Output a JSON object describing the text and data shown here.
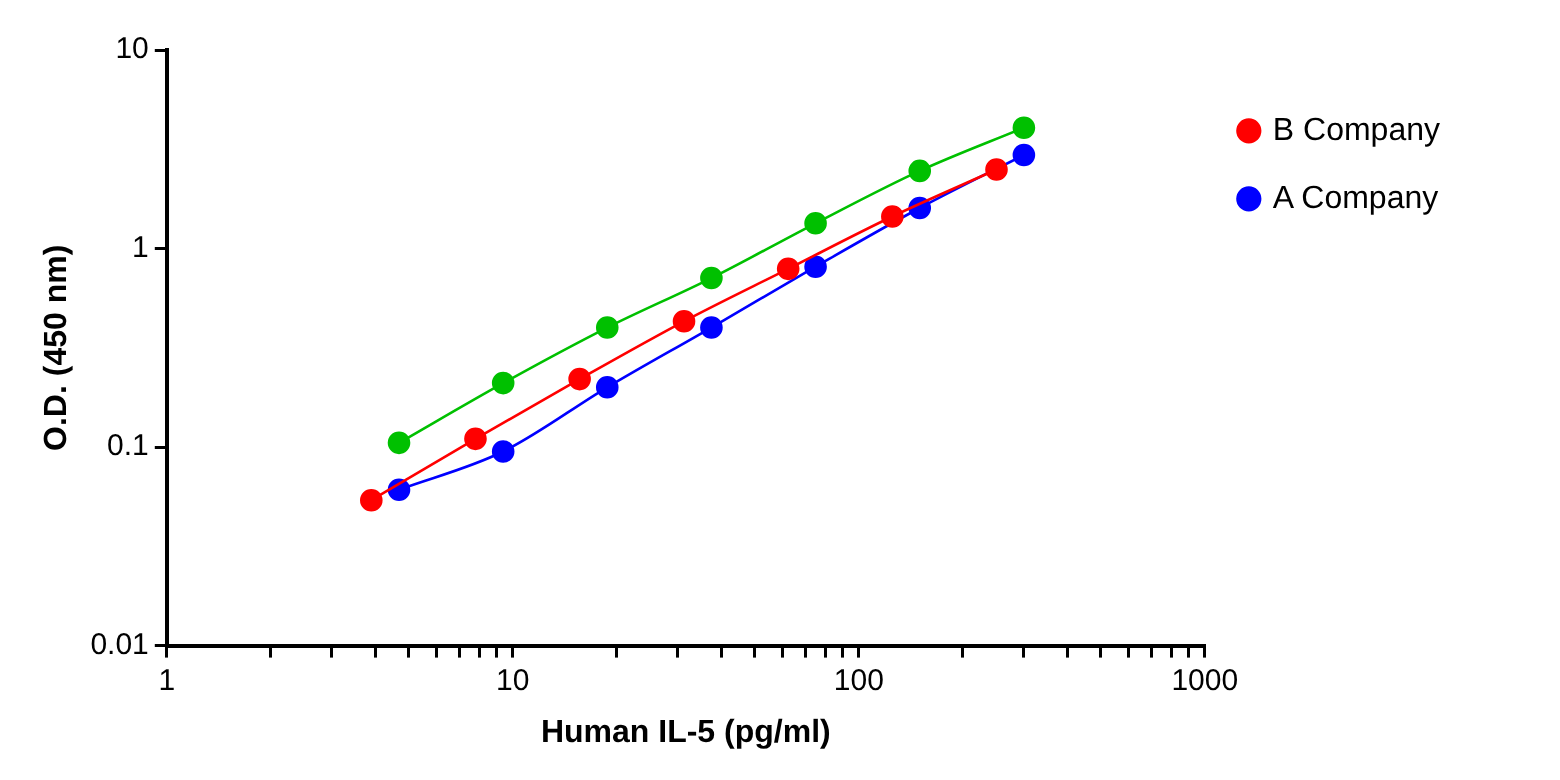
{
  "chart_data": {
    "type": "line",
    "xlabel": "Human IL-5 (pg/ml)",
    "ylabel": "O.D. (450 nm)",
    "log": "xy",
    "grid": false,
    "legend": "right",
    "marker": "circle",
    "line_style": "solid",
    "xlim": [
      1,
      1000
    ],
    "ylim": [
      0.01,
      10
    ],
    "xticks": [
      1,
      {
        "value": 2,
        "label": null
      },
      {
        "value": 3,
        "label": null
      },
      {
        "value": 4,
        "label": null
      },
      {
        "value": 5,
        "label": null
      },
      {
        "value": 6,
        "label": null
      },
      {
        "value": 7,
        "label": null
      },
      {
        "value": 8,
        "label": null
      },
      {
        "value": 9,
        "label": null
      },
      10,
      {
        "value": 20,
        "label": null
      },
      {
        "value": 30,
        "label": null
      },
      {
        "value": 40,
        "label": null
      },
      {
        "value": 50,
        "label": null
      },
      {
        "value": 60,
        "label": null
      },
      {
        "value": 70,
        "label": null
      },
      {
        "value": 80,
        "label": null
      },
      {
        "value": 90,
        "label": null
      },
      100,
      {
        "value": 200,
        "label": null
      },
      {
        "value": 300,
        "label": null
      },
      {
        "value": 400,
        "label": null
      },
      {
        "value": 500,
        "label": null
      },
      {
        "value": 600,
        "label": null
      },
      {
        "value": 700,
        "label": null
      },
      {
        "value": 800,
        "label": null
      },
      {
        "value": 900,
        "label": null
      },
      1000
    ],
    "yticks": [
      0.01,
      0.1,
      1,
      10
    ],
    "series": [
      {
        "name": "B Company",
        "color": "#ff0000",
        "x": [
          3.9,
          7.8,
          15.6,
          31.25,
          62.5,
          125,
          250
        ],
        "values": [
          0.054,
          0.11,
          0.22,
          0.43,
          0.79,
          1.45,
          2.5
        ]
      },
      {
        "name": "A Company",
        "color": "#0000ff",
        "x": [
          4.69,
          9.38,
          18.75,
          37.5,
          75,
          150,
          300
        ],
        "values": [
          0.061,
          0.095,
          0.2,
          0.4,
          0.81,
          1.6,
          2.96
        ]
      },
      {
        "color": "#00c000",
        "x": [
          4.69,
          9.38,
          18.75,
          37.5,
          75,
          150,
          300
        ],
        "values": [
          0.105,
          0.21,
          0.4,
          0.71,
          1.34,
          2.46,
          4.06
        ]
      }
    ]
  }
}
